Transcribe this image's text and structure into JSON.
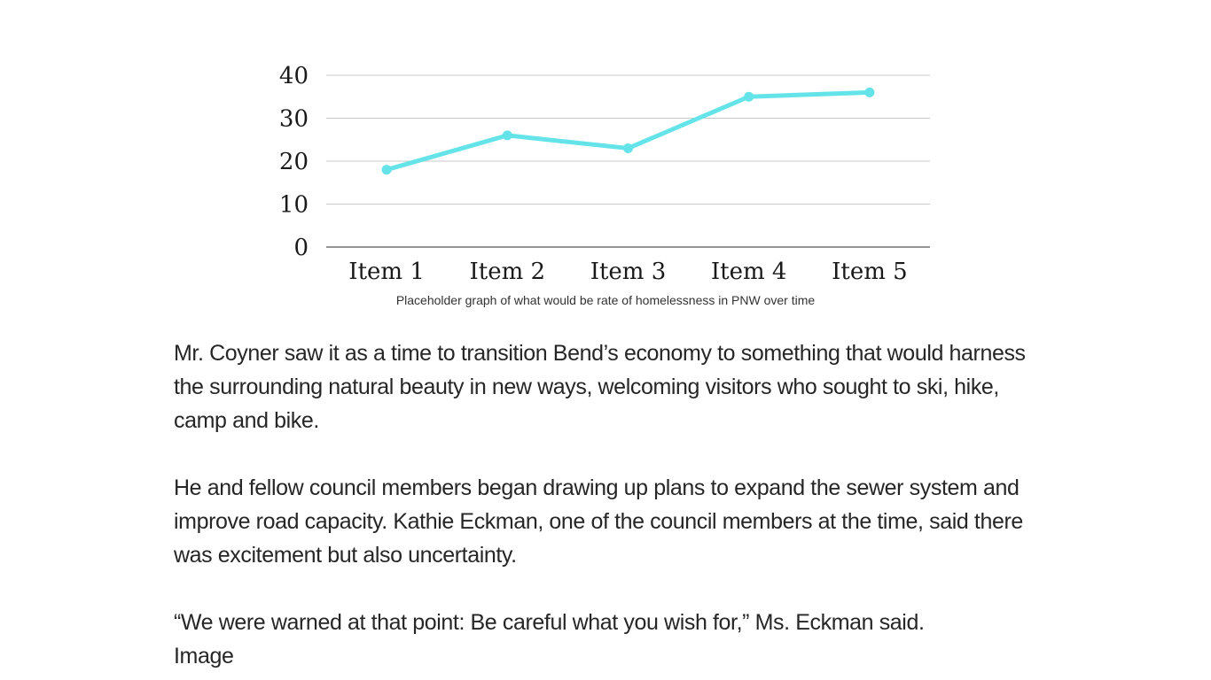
{
  "chart_data": {
    "type": "line",
    "categories": [
      "Item 1",
      "Item 2",
      "Item 3",
      "Item 4",
      "Item 5"
    ],
    "series": [
      {
        "values": [
          18,
          26,
          23,
          35,
          36
        ]
      }
    ],
    "y_ticks": [
      "0",
      "10",
      "20",
      "30",
      "40"
    ],
    "ylim": [
      0,
      40
    ],
    "grid": true,
    "line_color": "#64e3e8",
    "grid_color": "#c8c8c8",
    "axis_color": "#555555"
  },
  "caption": "Placeholder graph of what would be rate of homelessness in PNW over time",
  "article": {
    "paragraphs": [
      "Mr. Coyner saw it as a time to transition Bend’s economy to something that would harness the surrounding natural beauty in new ways, welcoming visitors who sought to ski, hike, camp and bike.",
      "He and fellow council members began drawing up plans to expand the sewer system and improve road capacity. Kathie Eckman, one of the council members at the time, said there was excitement but also uncertainty.",
      "“We were warned at that point: Be careful what you wish for,” Ms. Eckman said."
    ],
    "image_label": "Image"
  }
}
